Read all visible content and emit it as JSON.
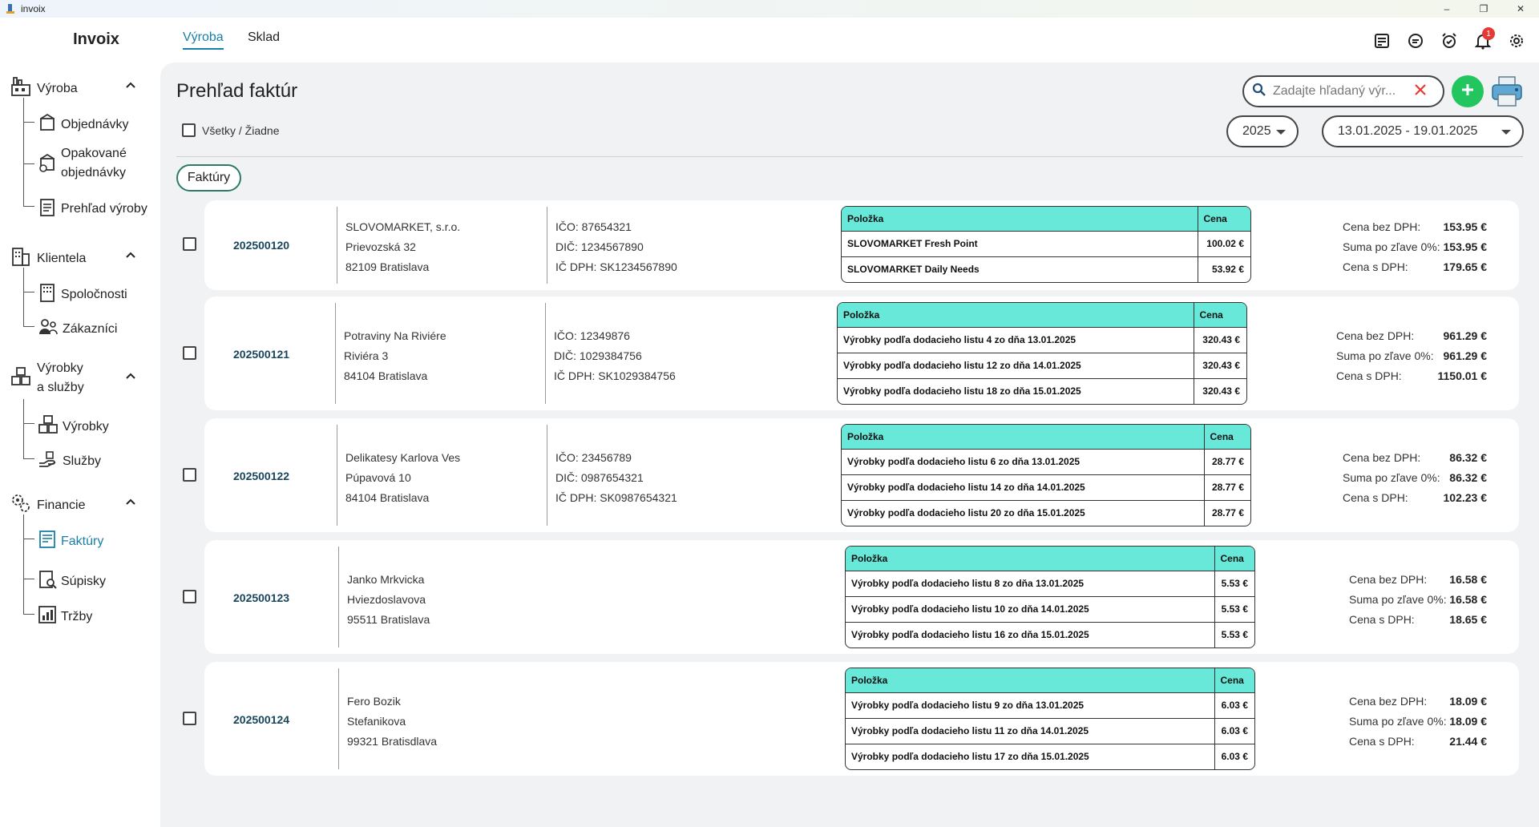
{
  "window": {
    "title": "invoix",
    "controls": [
      "–",
      "❐",
      "✕"
    ]
  },
  "brand": "Invoix",
  "tabs": [
    {
      "label": "Výroba",
      "active": true
    },
    {
      "label": "Sklad",
      "active": false
    }
  ],
  "notifications": {
    "count": "1"
  },
  "sidebar": {
    "sections": [
      {
        "label": "Výroba",
        "items": [
          "Objednávky",
          "Opakované objednávky",
          "Prehľad výroby"
        ]
      },
      {
        "label": "Klientela",
        "items": [
          "Spoločnosti",
          "Zákazníci"
        ]
      },
      {
        "label": "Výrobky a služby",
        "items": [
          "Výrobky",
          "Služby"
        ]
      },
      {
        "label": "Financie",
        "items": [
          "Faktúry",
          "Súpisky",
          "Tržby"
        ]
      }
    ],
    "section_labels": {
      "vyroba": "Výroba",
      "klientela": "Klientela",
      "vyrobky1": "Výrobky",
      "vyrobky2": "a služby",
      "financie": "Financie"
    },
    "item_labels": {
      "objednavky": "Objednávky",
      "opakovane1": "Opakované",
      "opakovane2": "objednávky",
      "prehlad": "Prehľad výroby",
      "spolocnosti": "Spoločnosti",
      "zakaznici": "Zákazníci",
      "vyrobky": "Výrobky",
      "sluzby": "Služby",
      "faktury": "Faktúry",
      "supisky": "Súpisky",
      "trzby": "Tržby"
    },
    "active_item": "Faktúry"
  },
  "main": {
    "title": "Prehľad faktúr",
    "select_all_label": "Všetky / Žiadne",
    "search_placeholder": "Zadajte hľadaný výr...",
    "year": "2025",
    "date_range": "13.01.2025 - 19.01.2025",
    "chip": "Faktúry"
  },
  "labels": {
    "item": "Položka",
    "price": "Cena",
    "ico": "IČO:",
    "dic": "DIČ:",
    "icdph": "IČ DPH:",
    "net": "Cena bez DPH:",
    "disc": "Suma po zľave 0%:",
    "gross": "Cena s DPH:"
  },
  "invoices": [
    {
      "number": "202500120",
      "name": "SLOVOMARKET, s.r.o.",
      "street": "Prievozská 32",
      "city": "82109 Bratislava",
      "ico": "IČO: 87654321",
      "dic": "DIČ: 1234567890",
      "icdph": "IČ DPH: SK1234567890",
      "items": [
        {
          "name": "SLOVOMARKET Fresh Point",
          "price": "100.02 €"
        },
        {
          "name": "SLOVOMARKET Daily Needs",
          "price": "53.92 €"
        }
      ],
      "net": "153.95 €",
      "discount": "153.95 €",
      "gross": "179.65 €"
    },
    {
      "number": "202500121",
      "name": "Potraviny Na Riviére",
      "street": "Riviéra 3",
      "city": "84104 Bratislava",
      "ico": "IČO: 12349876",
      "dic": "DIČ: 1029384756",
      "icdph": "IČ DPH: SK1029384756",
      "items": [
        {
          "name": "Výrobky podľa dodacieho listu 4 zo dňa 13.01.2025",
          "price": "320.43 €"
        },
        {
          "name": "Výrobky podľa dodacieho listu 12 zo dňa 14.01.2025",
          "price": "320.43 €"
        },
        {
          "name": "Výrobky podľa dodacieho listu 18 zo dňa 15.01.2025",
          "price": "320.43 €"
        }
      ],
      "net": "961.29 €",
      "discount": "961.29 €",
      "gross": "1150.01 €"
    },
    {
      "number": "202500122",
      "name": "Delikatesy Karlova Ves",
      "street": "Púpavová 10",
      "city": "84104 Bratislava",
      "ico": "IČO: 23456789",
      "dic": "DIČ: 0987654321",
      "icdph": "IČ DPH: SK0987654321",
      "items": [
        {
          "name": "Výrobky podľa dodacieho listu 6 zo dňa 13.01.2025",
          "price": "28.77 €"
        },
        {
          "name": "Výrobky podľa dodacieho listu 14 zo dňa 14.01.2025",
          "price": "28.77 €"
        },
        {
          "name": "Výrobky podľa dodacieho listu 20 zo dňa 15.01.2025",
          "price": "28.77 €"
        }
      ],
      "net": "86.32 €",
      "discount": "86.32 €",
      "gross": "102.23 €"
    },
    {
      "number": "202500123",
      "name": "Janko Mrkvicka",
      "street": "Hviezdoslavova",
      "city": "95511 Bratislava",
      "items": [
        {
          "name": "Výrobky podľa dodacieho listu 8 zo dňa 13.01.2025",
          "price": "5.53 €"
        },
        {
          "name": "Výrobky podľa dodacieho listu 10 zo dňa 14.01.2025",
          "price": "5.53 €"
        },
        {
          "name": "Výrobky podľa dodacieho listu 16 zo dňa 15.01.2025",
          "price": "5.53 €"
        }
      ],
      "net": "16.58 €",
      "discount": "16.58 €",
      "gross": "18.65 €"
    },
    {
      "number": "202500124",
      "name": "Fero Bozik",
      "street": "Stefanikova",
      "city": "99321 Bratisdlava",
      "items": [
        {
          "name": "Výrobky podľa dodacieho listu 9 zo dňa 13.01.2025",
          "price": "6.03 €"
        },
        {
          "name": "Výrobky podľa dodacieho listu 11 zo dňa 14.01.2025",
          "price": "6.03 €"
        },
        {
          "name": "Výrobky podľa dodacieho listu 17 zo dňa 15.01.2025",
          "price": "6.03 €"
        }
      ],
      "net": "18.09 €",
      "discount": "18.09 €",
      "gross": "21.44 €"
    }
  ],
  "colors": {
    "accent": "#1a7fa8",
    "table_header": "#67e8d8",
    "add_button": "#22c55e",
    "badge": "#e53935"
  }
}
